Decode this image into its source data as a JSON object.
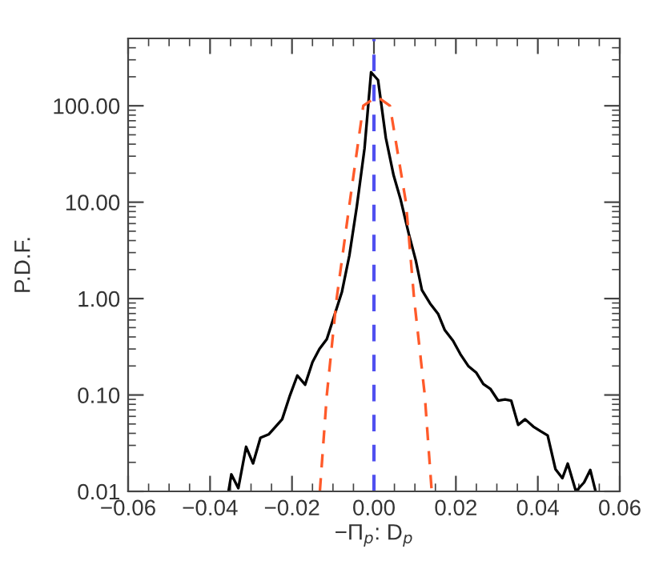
{
  "chart_data": {
    "type": "line",
    "xlabel": "−Π$_{p}$: D$_{p}$",
    "ylabel": "P.D.F.",
    "log": "y",
    "grid": false,
    "xlim": [
      -0.06,
      0.06
    ],
    "ylim": [
      0.01,
      500
    ],
    "xticks": [
      {
        "value": -0.06,
        "label": "−0.06"
      },
      {
        "value": -0.04,
        "label": "−0.04"
      },
      {
        "value": -0.02,
        "label": "−0.02"
      },
      {
        "value": 0.0,
        "label": "0.00"
      },
      {
        "value": 0.02,
        "label": "0.02"
      },
      {
        "value": 0.04,
        "label": "0.04"
      },
      {
        "value": 0.06,
        "label": "0.06"
      }
    ],
    "yticks": [
      {
        "value": 0.01,
        "label": "0.01"
      },
      {
        "value": 0.1,
        "label": "0.10"
      },
      {
        "value": 1,
        "label": "1.00"
      },
      {
        "value": 10,
        "label": "10.00"
      },
      {
        "value": 100,
        "label": "100.00"
      }
    ],
    "series": [
      {
        "color": "#000000",
        "line_style": "solid",
        "x": [
          -0.0355,
          -0.0348,
          -0.0331,
          -0.0312,
          -0.0295,
          -0.0277,
          -0.0257,
          -0.024,
          -0.0224,
          -0.0205,
          -0.0187,
          -0.0168,
          -0.015,
          -0.0133,
          -0.0115,
          -0.0098,
          -0.0078,
          -0.006,
          -0.0042,
          -0.0023,
          -0.0007,
          0.001,
          0.0029,
          0.0048,
          0.0065,
          0.0085,
          0.0102,
          0.0117,
          0.0137,
          0.0157,
          0.0173,
          0.0193,
          0.0211,
          0.0231,
          0.025,
          0.0267,
          0.0284,
          0.0303,
          0.032,
          0.0335,
          0.0352,
          0.0369,
          0.0389,
          0.0407,
          0.0424,
          0.0443,
          0.046,
          0.0473,
          0.0493,
          0.0513,
          0.0528,
          0.0541
        ],
        "values": [
          0.01,
          0.015,
          0.0108,
          0.029,
          0.0195,
          0.036,
          0.039,
          0.047,
          0.056,
          0.099,
          0.159,
          0.128,
          0.219,
          0.3,
          0.38,
          0.64,
          1.18,
          2.8,
          8.9,
          36,
          223,
          185,
          46.5,
          19,
          10.7,
          4.7,
          2.5,
          1.23,
          0.89,
          0.69,
          0.47,
          0.365,
          0.265,
          0.198,
          0.17,
          0.13,
          0.116,
          0.0875,
          0.09,
          0.0875,
          0.049,
          0.056,
          0.047,
          0.042,
          0.038,
          0.017,
          0.0137,
          0.0194,
          0.01,
          0.0124,
          0.0167,
          0.01
        ]
      },
      {
        "color": "#ff5a2a",
        "line_style": "dashed",
        "x": [
          -0.0132,
          -0.0115,
          -0.0091,
          -0.0059,
          -0.0026,
          0.0007,
          0.0039,
          0.0078,
          0.0098,
          0.0124,
          0.0141
        ],
        "values": [
          0.01,
          0.1,
          1,
          10,
          100,
          125,
          100,
          10,
          1,
          0.1,
          0.01
        ]
      }
    ],
    "ref_lines": [
      {
        "axis": "x",
        "value": 0.0,
        "color": "#5050f0",
        "line_style": "dashed"
      }
    ]
  }
}
